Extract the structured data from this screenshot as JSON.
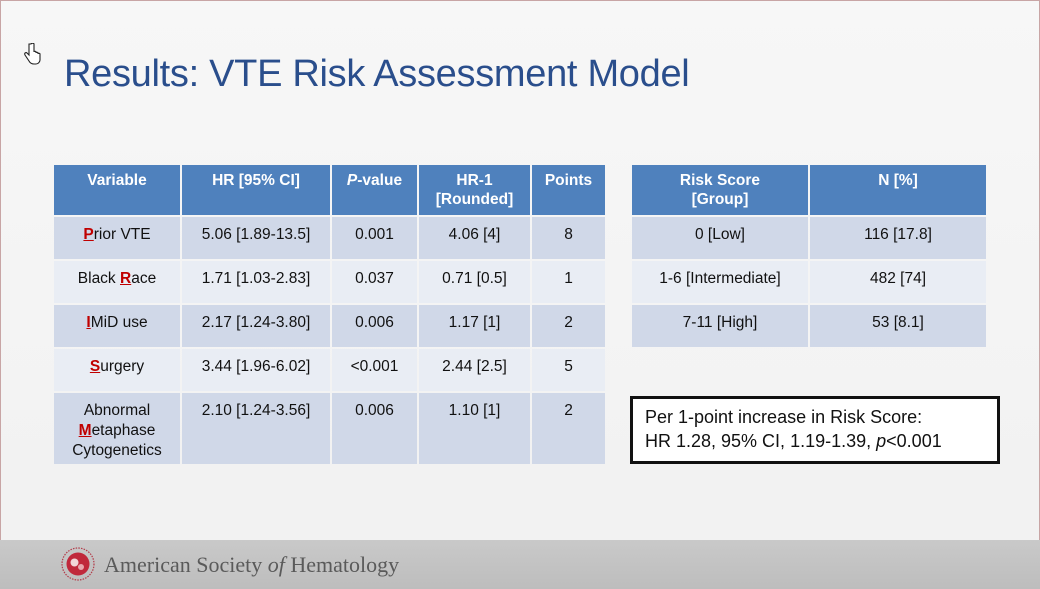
{
  "title": "Results: VTE Risk Assessment Model",
  "main_table": {
    "headers": {
      "variable": "Variable",
      "hr": "HR [95% CI]",
      "pvalue_italic": "P",
      "pvalue_rest": "-value",
      "hr1_line1": "HR-1",
      "hr1_line2": "[Rounded]",
      "points": "Points"
    },
    "rows": [
      {
        "key": "P",
        "rest": "rior VTE",
        "hr": "5.06 [1.89-13.5]",
        "p": "0.001",
        "hr1": "4.06 [4]",
        "points": "8"
      },
      {
        "pre": "Black ",
        "key": "R",
        "rest": "ace",
        "hr": "1.71 [1.03-2.83]",
        "p": "0.037",
        "hr1": "0.71 [0.5]",
        "points": "1"
      },
      {
        "key": "I",
        "rest": "MiD use",
        "hr": "2.17 [1.24-3.80]",
        "p": "0.006",
        "hr1": "1.17 [1]",
        "points": "2"
      },
      {
        "key": "S",
        "rest": "urgery",
        "hr": "3.44 [1.96-6.02]",
        "p": "<0.001",
        "hr1": "2.44 [2.5]",
        "points": "5"
      },
      {
        "line1": "Abnormal",
        "key": "M",
        "rest": "etaphase",
        "line3": "Cytogenetics",
        "hr": "2.10 [1.24-3.56]",
        "p": "0.006",
        "hr1": "1.10 [1]",
        "points": "2"
      }
    ]
  },
  "risk_table": {
    "headers": {
      "score_line1": "Risk Score",
      "score_line2": "[Group]",
      "n": "N [%]"
    },
    "rows": [
      {
        "score": "0 [Low]",
        "n": "116 [17.8]"
      },
      {
        "score": "1-6 [Intermediate]",
        "n": "482 [74]"
      },
      {
        "score": "7-11 [High]",
        "n": "53 [8.1]"
      }
    ]
  },
  "summary": {
    "line1": "Per 1-point increase in Risk Score:",
    "line2_main": "HR 1.28, 95% CI, 1.19-1.39, ",
    "line2_p": "p",
    "line2_end": "<0.001"
  },
  "footer": {
    "org_pre": "American Society ",
    "org_of": "of",
    "org_post": " Hematology"
  },
  "colors": {
    "title": "#2a4e8c",
    "header": "#4f81bd",
    "key_letter": "#c00000"
  },
  "icons": [
    "hand-cursor-icon",
    "ash-logo-icon"
  ]
}
